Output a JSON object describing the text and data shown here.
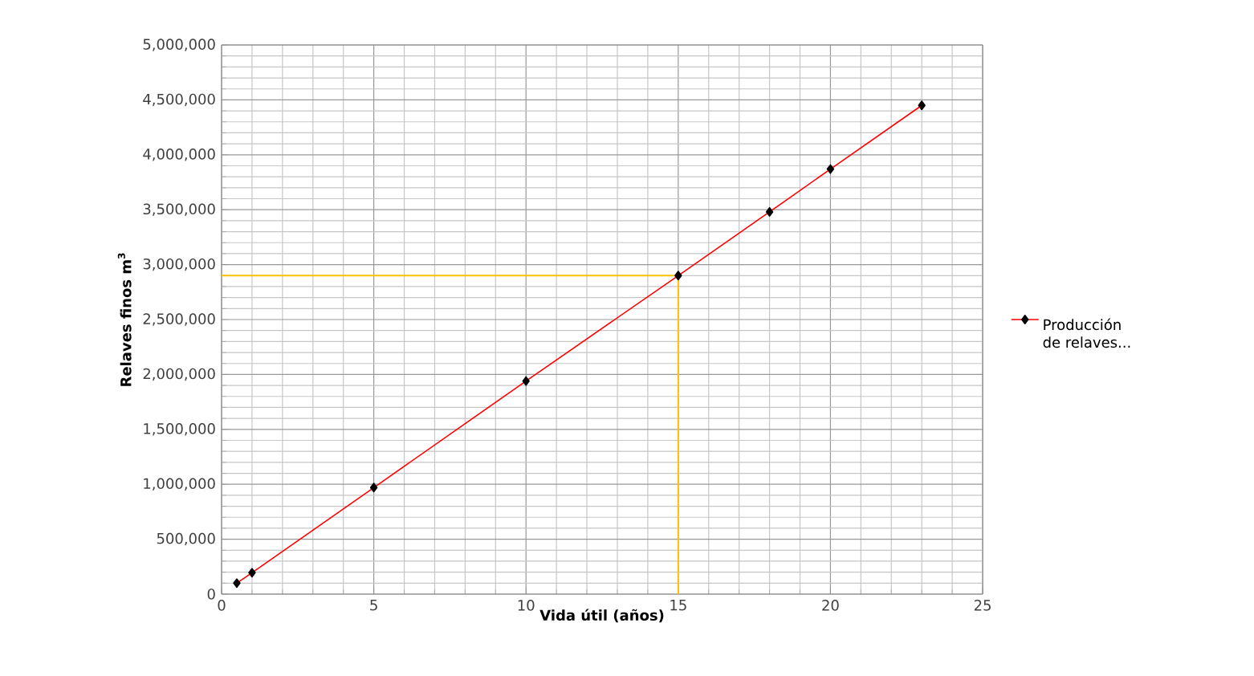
{
  "chart_data": {
    "type": "line",
    "xlabel": "Vida útil (años)",
    "ylabel": "Relaves finos m$^{3}$",
    "x": [
      0.5,
      1,
      5,
      10,
      15,
      18,
      20,
      23
    ],
    "series": [
      {
        "name": "Producción de relaves...",
        "color": "#ff0000",
        "values": [
          100000,
          195000,
          970000,
          1940000,
          2900000,
          3480000,
          3870000,
          4450000
        ]
      }
    ],
    "xlim": [
      0,
      25
    ],
    "xticks": [
      0,
      5,
      10,
      15,
      20,
      25
    ],
    "ylim": [
      0,
      5000000
    ],
    "yticks": [
      {
        "value": 0,
        "label": "0"
      },
      {
        "value": 500000,
        "label": "500,000"
      },
      {
        "value": 1000000,
        "label": "1,000,000"
      },
      {
        "value": 1500000,
        "label": "1,500,000"
      },
      {
        "value": 2000000,
        "label": "2,000,000"
      },
      {
        "value": 2500000,
        "label": "2,500,000"
      },
      {
        "value": 3000000,
        "label": "3,000,000"
      },
      {
        "value": 3500000,
        "label": "3,500,000"
      },
      {
        "value": 4000000,
        "label": "4,000,000"
      },
      {
        "value": 4500000,
        "label": "4,500,000"
      },
      {
        "value": 5000000,
        "label": "5,000,000"
      }
    ],
    "ref_lines": [
      {
        "axis": "y",
        "value": 2900000,
        "color": "#ffc000"
      },
      {
        "axis": "x",
        "value": 15,
        "color": "#ffc000"
      }
    ],
    "grid": true,
    "legend": "right",
    "marker": "diamond",
    "line_style": "solid"
  }
}
